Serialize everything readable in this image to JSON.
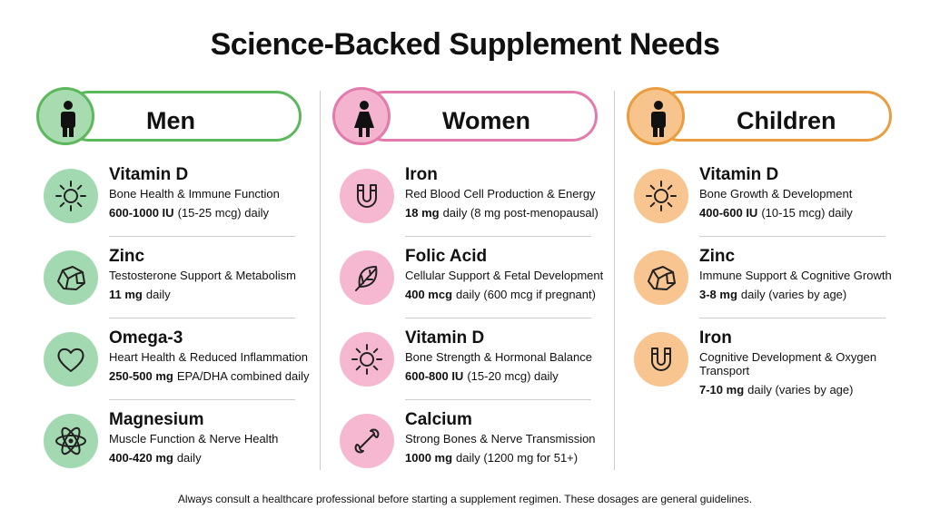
{
  "header": {
    "title": "Science-Backed Supplement Needs"
  },
  "columns": [
    {
      "label": "Men",
      "items": [
        {
          "name": "Vitamin D",
          "benefit": "Bone Health & Immune Function",
          "dose_bold": "600-1000 IU",
          "dose_rest": "(15-25 mcg) daily"
        },
        {
          "name": "Zinc",
          "benefit": "Testosterone Support & Metabolism",
          "dose_bold": "11 mg",
          "dose_rest": "daily"
        },
        {
          "name": "Omega-3",
          "benefit": "Heart Health & Reduced Inflammation",
          "dose_bold": "250-500 mg",
          "dose_rest": "EPA/DHA combined daily"
        },
        {
          "name": "Magnesium",
          "benefit": "Muscle Function & Nerve Health",
          "dose_bold": "400-420 mg",
          "dose_rest": "daily"
        }
      ]
    },
    {
      "label": "Women",
      "items": [
        {
          "name": "Iron",
          "benefit": "Red Blood Cell Production & Energy",
          "dose_bold": "18 mg",
          "dose_rest": "daily (8 mg post-menopausal)"
        },
        {
          "name": "Folic Acid",
          "benefit": "Cellular Support & Fetal Development",
          "dose_bold": "400 mcg",
          "dose_rest": "daily (600 mcg if pregnant)"
        },
        {
          "name": "Vitamin D",
          "benefit": "Bone Strength & Hormonal Balance",
          "dose_bold": "600-800 IU",
          "dose_rest": "(15-20 mcg) daily"
        },
        {
          "name": "Calcium",
          "benefit": "Strong Bones & Nerve Transmission",
          "dose_bold": "1000 mg",
          "dose_rest": "daily (1200 mg for 51+)"
        }
      ]
    },
    {
      "label": "Children",
      "items": [
        {
          "name": "Vitamin D",
          "benefit": "Bone Growth & Development",
          "dose_bold": "400-600 IU",
          "dose_rest": "(10-15 mcg) daily"
        },
        {
          "name": "Zinc",
          "benefit": "Immune Support & Cognitive Growth",
          "dose_bold": "3-8 mg",
          "dose_rest": "daily (varies by age)"
        },
        {
          "name": "Iron",
          "benefit": "Cognitive Development & Oxygen Transport",
          "dose_bold": "7-10 mg",
          "dose_rest": "daily (varies by age)"
        }
      ]
    }
  ],
  "footer": "Always consult a healthcare professional before starting a supplement regimen. These dosages are general guidelines."
}
